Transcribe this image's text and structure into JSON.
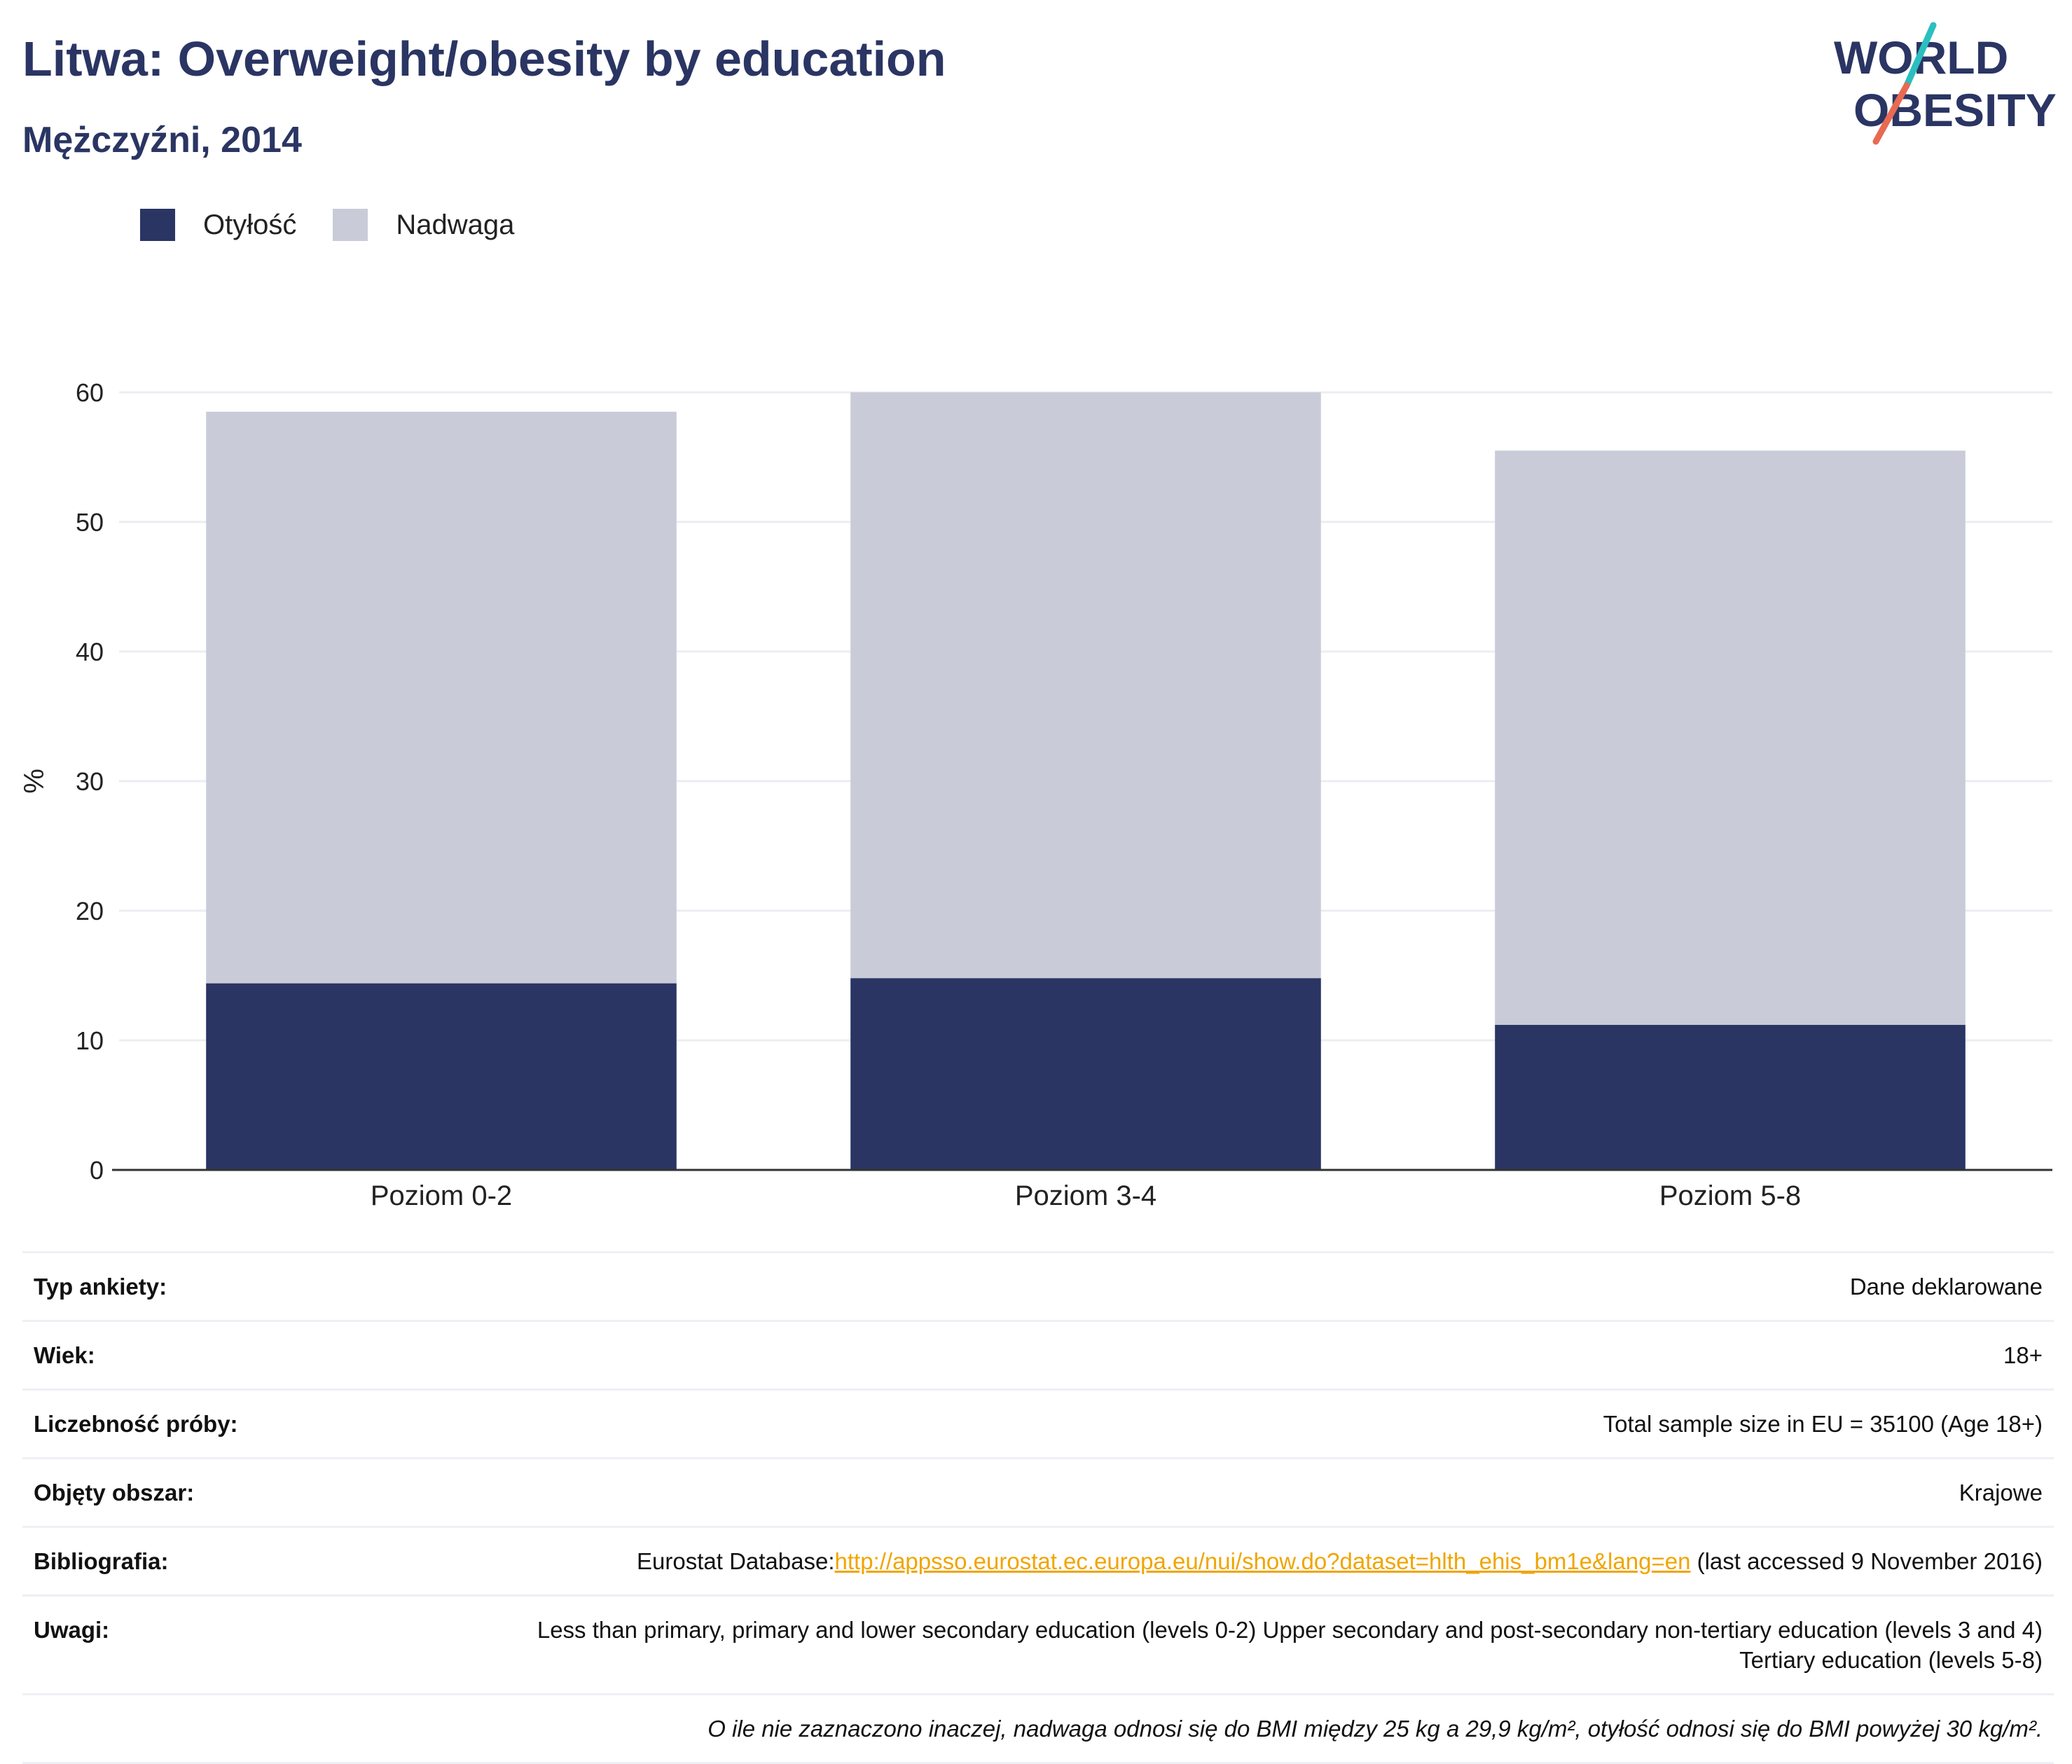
{
  "header": {
    "title": "Litwa: Overweight/obesity by education",
    "subtitle": "Mężczyźni, 2014"
  },
  "logo": {
    "line1": "WORLD",
    "line2": "OBESITY",
    "colors": {
      "text": "#2a3563",
      "slash_top": "#2bbfbf",
      "slash_bottom": "#e86a52"
    }
  },
  "legend": [
    {
      "label": "Otyłość",
      "color": "#2a3563"
    },
    {
      "label": "Nadwaga",
      "color": "#c9ccd8"
    }
  ],
  "chart_data": {
    "type": "bar",
    "stacked": true,
    "categories": [
      "Poziom 0-2",
      "Poziom 3-4",
      "Poziom 5-8"
    ],
    "series": [
      {
        "name": "Otyłość",
        "color": "#2a3563",
        "values": [
          14.4,
          14.8,
          11.2
        ]
      },
      {
        "name": "Nadwaga",
        "color": "#c9ccd8",
        "values": [
          44.1,
          45.2,
          44.3
        ]
      }
    ],
    "ylabel": "%",
    "ylim": [
      0,
      60
    ],
    "yticks": [
      "0",
      "10",
      "20",
      "30",
      "40",
      "50",
      "60"
    ],
    "grid": true
  },
  "meta": {
    "rows": [
      {
        "key": "Typ ankiety:",
        "value": "Dane deklarowane"
      },
      {
        "key": "Wiek:",
        "value": "18+"
      },
      {
        "key": "Liczebność próby:",
        "value": "Total sample size in EU = 35100 (Age 18+)"
      },
      {
        "key": "Objęty obszar:",
        "value": "Krajowe"
      }
    ],
    "bibliography": {
      "key": "Bibliografia:",
      "prefix": "Eurostat Database:",
      "link": "http://appsso.eurostat.ec.europa.eu/nui/show.do?dataset=hlth_ehis_bm1e&lang=en",
      "suffix": " (last accessed 9 November 2016)"
    },
    "notes": {
      "key": "Uwagi:",
      "value": "Less than primary, primary and lower secondary education (levels 0-2) Upper secondary and post-secondary non-tertiary education (levels 3 and 4) Tertiary education (levels 5-8)"
    },
    "footnote": "O ile nie zaznaczono inaczej, nadwaga odnosi się do BMI między 25 kg a 29,9 kg/m², otyłość odnosi się do BMI powyżej 30 kg/m²."
  }
}
